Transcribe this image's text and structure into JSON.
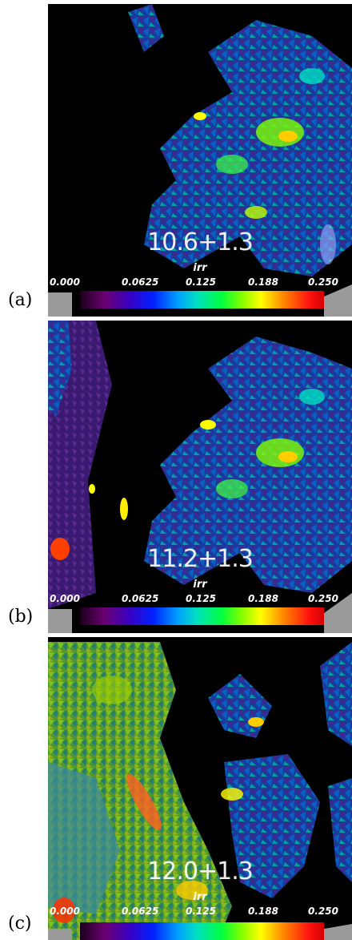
{
  "panels": [
    {
      "label": "(a)",
      "time": "10.6+1.3",
      "cbar_title": "irr"
    },
    {
      "label": "(b)",
      "time": "11.2+1.3",
      "cbar_title": "irr"
    },
    {
      "label": "(c)",
      "time": "12.0+1.3",
      "cbar_title": "irr"
    }
  ],
  "colorbar_ticks": [
    "0.000",
    "0.0625",
    "0.125",
    "0.188",
    "0.250"
  ],
  "colors": {
    "background": "#000000",
    "low": "#2a0060",
    "mid": "#00ff40",
    "high": "#ff1010"
  }
}
